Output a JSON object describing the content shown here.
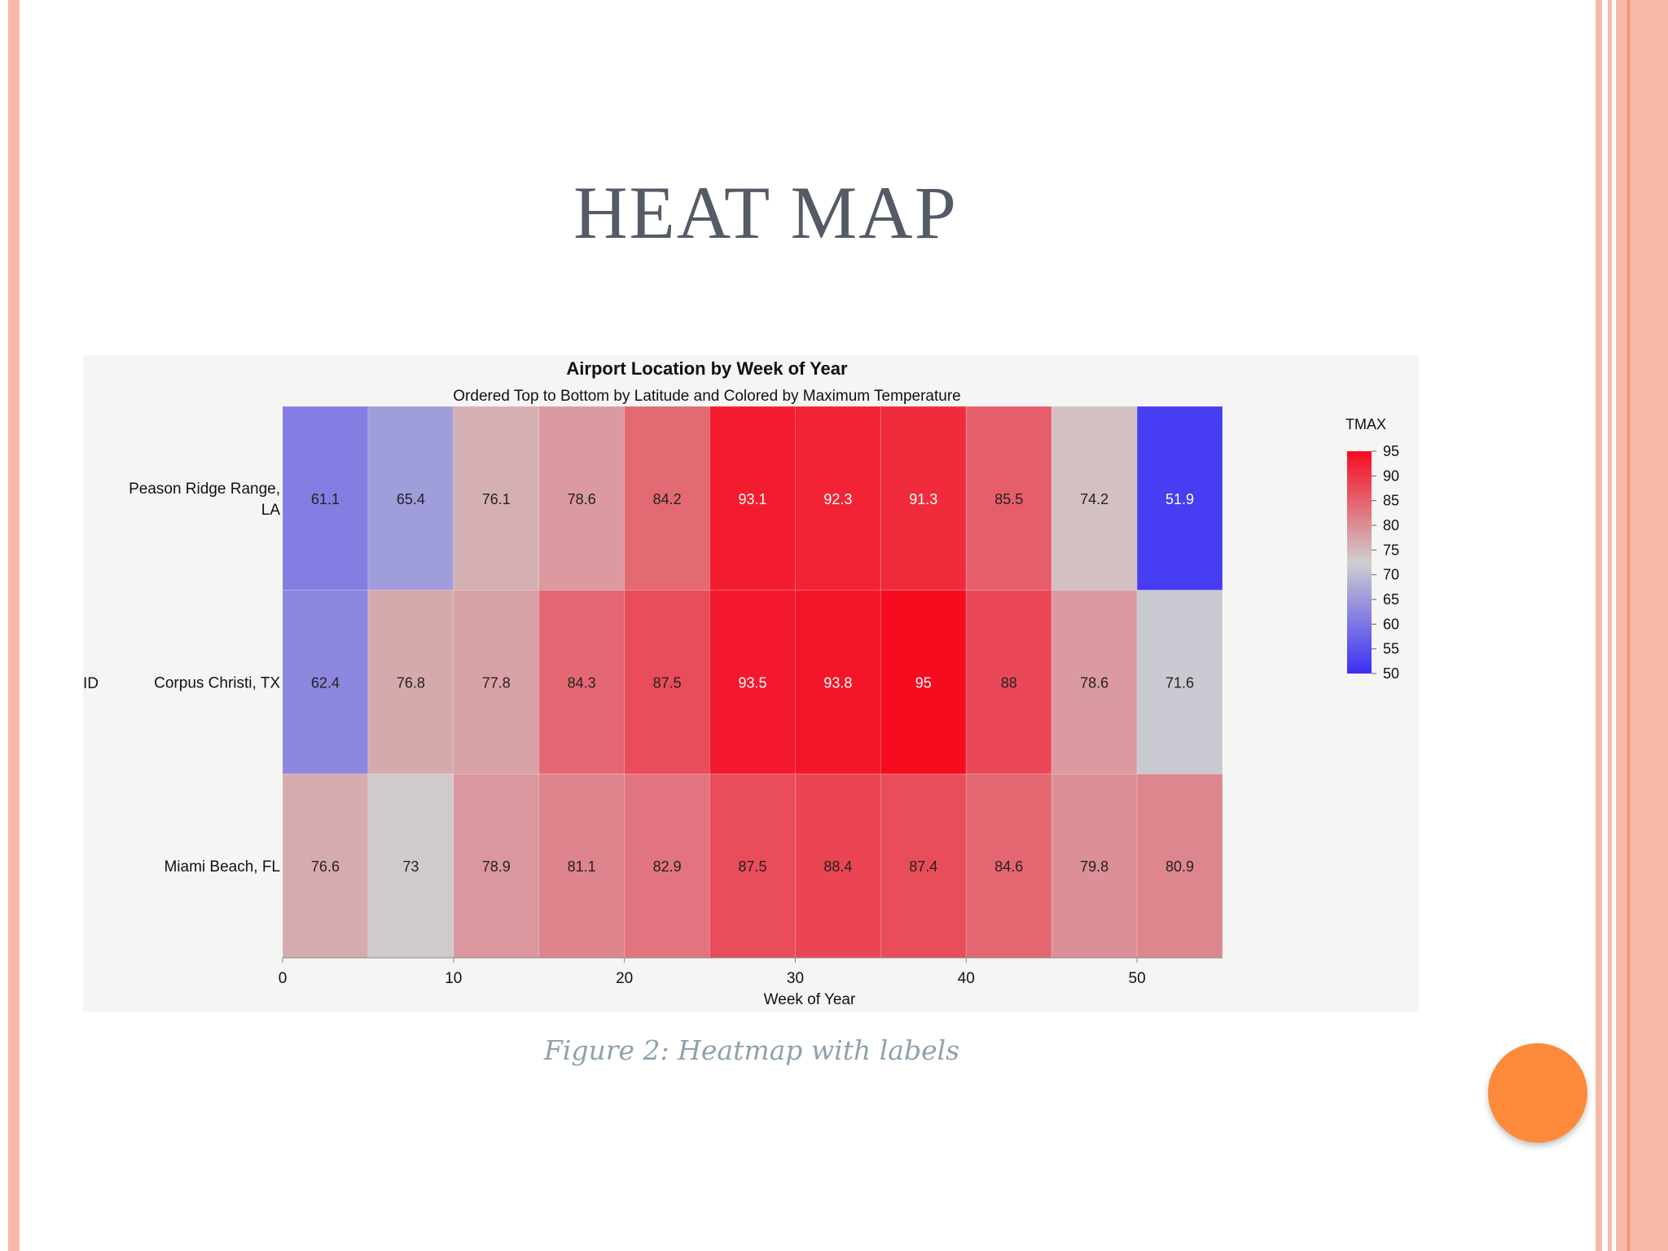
{
  "slide": {
    "title": "HEAT MAP",
    "caption": "Figure 2: Heatmap with labels"
  },
  "colors": {
    "accent_stripe": "#f7b9a7",
    "accent_stripe_dark": "#f08f74",
    "nav_dot": "#fd8a3a",
    "title": "#545b66",
    "scale_low": "#3b2ff5",
    "scale_mid": "#cfcfcf",
    "scale_high": "#f60b1f"
  },
  "chart_data": {
    "type": "heatmap",
    "title": "Airport Location by Week of Year",
    "subtitle": "Ordered Top to Bottom by Latitude and Colored by Maximum Temperature",
    "xlabel": "Week of Year",
    "ylabel": "ID",
    "x_ticks": [
      0,
      10,
      20,
      30,
      40,
      50
    ],
    "xlim": [
      0,
      55
    ],
    "bin_width": 5,
    "rows": [
      {
        "label_lines": [
          "Peason Ridge Range,",
          "LA"
        ],
        "values": [
          61.1,
          65.4,
          76.1,
          78.6,
          84.2,
          93.1,
          92.3,
          91.3,
          85.5,
          74.2,
          51.9
        ]
      },
      {
        "label_lines": [
          "Corpus Christi, TX"
        ],
        "values": [
          62.4,
          76.8,
          77.8,
          84.3,
          87.5,
          93.5,
          93.8,
          95,
          88,
          78.6,
          71.6
        ]
      },
      {
        "label_lines": [
          "Miami Beach, FL"
        ],
        "values": [
          76.6,
          73,
          78.9,
          81.1,
          82.9,
          87.5,
          88.4,
          87.4,
          84.6,
          79.8,
          80.9
        ]
      }
    ],
    "legend": {
      "title": "TMAX",
      "ticks": [
        95,
        90,
        85,
        80,
        75,
        70,
        65,
        60,
        55,
        50
      ],
      "range": [
        50,
        95
      ],
      "placement": "right"
    }
  }
}
